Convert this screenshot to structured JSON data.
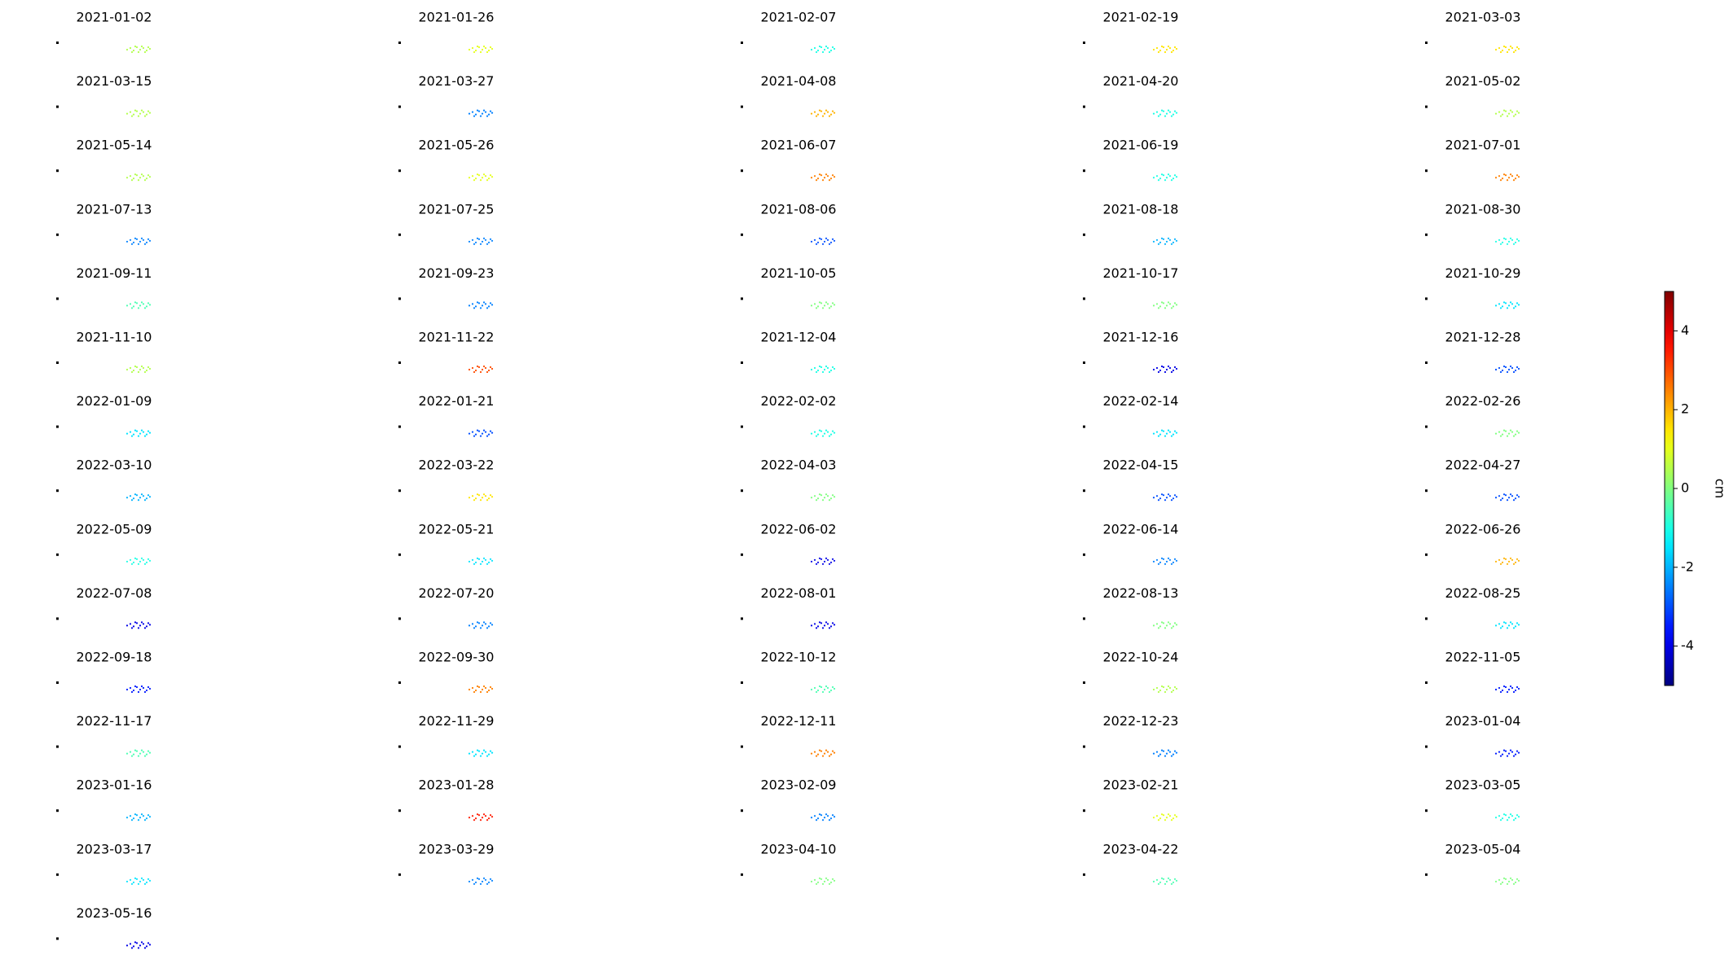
{
  "chart_data": {
    "type": "map-grid",
    "panels": [
      {
        "title": "2021-01-02",
        "value": 0.5
      },
      {
        "title": "2021-01-26",
        "value": 1
      },
      {
        "title": "2021-02-07",
        "value": -1
      },
      {
        "title": "2021-02-19",
        "value": 1.5
      },
      {
        "title": "2021-03-03",
        "value": 1.5
      },
      {
        "title": "2021-03-15",
        "value": 0.5
      },
      {
        "title": "2021-03-27",
        "value": -2.5
      },
      {
        "title": "2021-04-08",
        "value": 2
      },
      {
        "title": "2021-04-20",
        "value": -1
      },
      {
        "title": "2021-05-02",
        "value": 0.5
      },
      {
        "title": "2021-05-14",
        "value": 0.5
      },
      {
        "title": "2021-05-26",
        "value": 1
      },
      {
        "title": "2021-06-07",
        "value": 2.5
      },
      {
        "title": "2021-06-19",
        "value": -1
      },
      {
        "title": "2021-07-01",
        "value": 2.5
      },
      {
        "title": "2021-07-13",
        "value": -2.5
      },
      {
        "title": "2021-07-25",
        "value": -2.5
      },
      {
        "title": "2021-08-06",
        "value": -3
      },
      {
        "title": "2021-08-18",
        "value": -2
      },
      {
        "title": "2021-08-30",
        "value": -1
      },
      {
        "title": "2021-09-11",
        "value": -0.5
      },
      {
        "title": "2021-09-23",
        "value": -2.5
      },
      {
        "title": "2021-10-05",
        "value": 0
      },
      {
        "title": "2021-10-17",
        "value": 0
      },
      {
        "title": "2021-10-29",
        "value": -1.5
      },
      {
        "title": "2021-11-10",
        "value": 0.5
      },
      {
        "title": "2021-11-22",
        "value": 3
      },
      {
        "title": "2021-12-04",
        "value": -1
      },
      {
        "title": "2021-12-16",
        "value": -4
      },
      {
        "title": "2021-12-28",
        "value": -3
      },
      {
        "title": "2022-01-09",
        "value": -1.5
      },
      {
        "title": "2022-01-21",
        "value": -3
      },
      {
        "title": "2022-02-02",
        "value": -1
      },
      {
        "title": "2022-02-14",
        "value": -1.5
      },
      {
        "title": "2022-02-26",
        "value": 0
      },
      {
        "title": "2022-03-10",
        "value": -2
      },
      {
        "title": "2022-03-22",
        "value": 1.5
      },
      {
        "title": "2022-04-03",
        "value": 0
      },
      {
        "title": "2022-04-15",
        "value": -3
      },
      {
        "title": "2022-04-27",
        "value": -3
      },
      {
        "title": "2022-05-09",
        "value": -1
      },
      {
        "title": "2022-05-21",
        "value": -1.5
      },
      {
        "title": "2022-06-02",
        "value": -4
      },
      {
        "title": "2022-06-14",
        "value": -2.5
      },
      {
        "title": "2022-06-26",
        "value": 2
      },
      {
        "title": "2022-07-08",
        "value": -4
      },
      {
        "title": "2022-07-20",
        "value": -2.5
      },
      {
        "title": "2022-08-01",
        "value": -4
      },
      {
        "title": "2022-08-13",
        "value": 0
      },
      {
        "title": "2022-08-25",
        "value": -1.5
      },
      {
        "title": "2022-09-18",
        "value": -3.5
      },
      {
        "title": "2022-09-30",
        "value": 2.5
      },
      {
        "title": "2022-10-12",
        "value": -0.5
      },
      {
        "title": "2022-10-24",
        "value": 0.5
      },
      {
        "title": "2022-11-05",
        "value": -3.5
      },
      {
        "title": "2022-11-17",
        "value": -0.5
      },
      {
        "title": "2022-11-29",
        "value": -1.5
      },
      {
        "title": "2022-12-11",
        "value": 2.5
      },
      {
        "title": "2022-12-23",
        "value": -2.5
      },
      {
        "title": "2023-01-04",
        "value": -3.5
      },
      {
        "title": "2023-01-16",
        "value": -2
      },
      {
        "title": "2023-01-28",
        "value": 3.5
      },
      {
        "title": "2023-02-09",
        "value": -2.5
      },
      {
        "title": "2023-02-21",
        "value": 1
      },
      {
        "title": "2023-03-05",
        "value": -1
      },
      {
        "title": "2023-03-17",
        "value": -1.5
      },
      {
        "title": "2023-03-29",
        "value": -2.5
      },
      {
        "title": "2023-04-10",
        "value": 0
      },
      {
        "title": "2023-04-22",
        "value": -0.5
      },
      {
        "title": "2023-05-04",
        "value": 0
      },
      {
        "title": "2023-05-16",
        "value": -4
      }
    ],
    "columns": 5,
    "colorbar": {
      "label": "cm",
      "lim": [
        -5,
        5
      ],
      "ticks": [
        -4,
        -2,
        0,
        2,
        4
      ],
      "colormap": "jet"
    }
  }
}
